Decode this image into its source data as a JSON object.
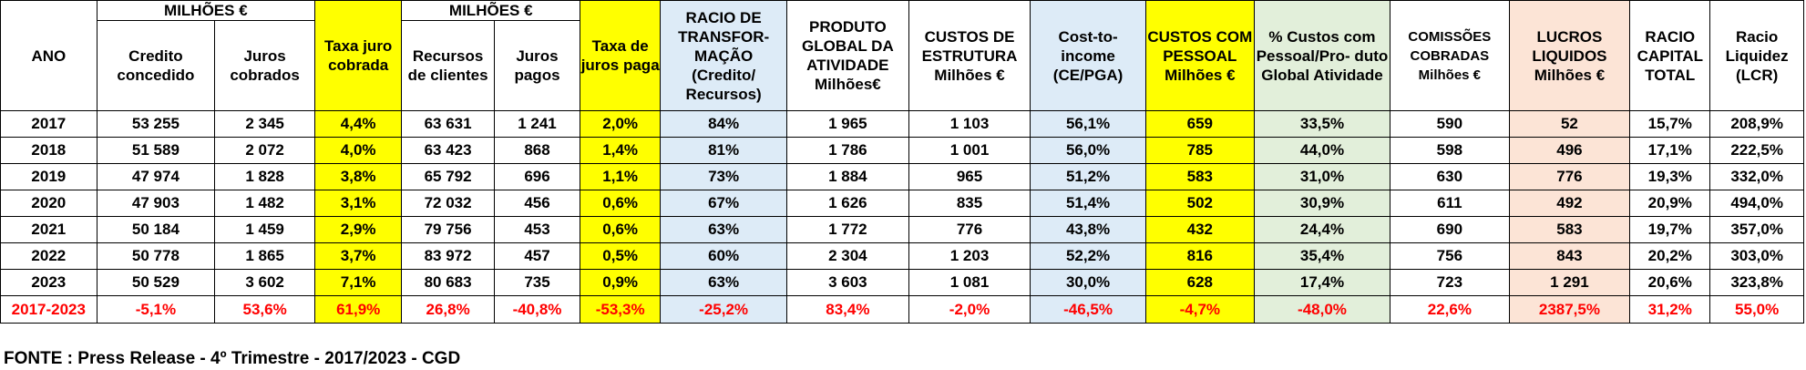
{
  "table": {
    "group_headers": {
      "milhoes_1": "MILHÕES €",
      "milhoes_2": "MILHÕES €"
    },
    "columns": [
      {
        "key": "ano",
        "label": "ANO"
      },
      {
        "key": "credito",
        "label": "Credito concedido"
      },
      {
        "key": "juros_cobrados",
        "label": "Juros cobrados"
      },
      {
        "key": "taxa_cobrada",
        "label": "Taxa juro cobrada",
        "highlight": "#ffff00"
      },
      {
        "key": "recursos",
        "label": "Recursos de clientes"
      },
      {
        "key": "juros_pagos",
        "label": "Juros pagos"
      },
      {
        "key": "taxa_paga",
        "label": "Taxa de juros paga",
        "highlight": "#ffff00"
      },
      {
        "key": "racio_transf",
        "label": "RACIO DE TRANSFOR- MAÇÃO (Credito/ Recursos)",
        "highlight": "#ddebf7"
      },
      {
        "key": "produto_global",
        "label": "PRODUTO GLOBAL DA ATIVIDADE Milhões€"
      },
      {
        "key": "custos_estrutura",
        "label": "CUSTOS DE ESTRUTURA Milhões €"
      },
      {
        "key": "cost_income",
        "label": "Cost-to- income (CE/PGA)",
        "highlight": "#ddebf7"
      },
      {
        "key": "custos_pessoal",
        "label": "CUSTOS COM PESSOAL Milhões €",
        "highlight": "#ffff00"
      },
      {
        "key": "pct_custos",
        "label": "% Custos com Pessoal/Pro- duto Global Atividade",
        "highlight": "#e2efda"
      },
      {
        "key": "comissoes",
        "label": "COMISSÕES COBRADAS Milhões €"
      },
      {
        "key": "lucros",
        "label": "LUCROS LIQUIDOS Milhões €",
        "highlight": "#fce4d6"
      },
      {
        "key": "racio_capital",
        "label": "RACIO CAPITAL TOTAL"
      },
      {
        "key": "lcr",
        "label": "Racio Liquidez (LCR)"
      }
    ],
    "rows": [
      [
        "2017",
        "53 255",
        "2 345",
        "4,4%",
        "63 631",
        "1 241",
        "2,0%",
        "84%",
        "1 965",
        "1 103",
        "56,1%",
        "659",
        "33,5%",
        "590",
        "52",
        "15,7%",
        "208,9%"
      ],
      [
        "2018",
        "51 589",
        "2 072",
        "4,0%",
        "63 423",
        "868",
        "1,4%",
        "81%",
        "1 786",
        "1 001",
        "56,0%",
        "785",
        "44,0%",
        "598",
        "496",
        "17,1%",
        "222,5%"
      ],
      [
        "2019",
        "47 974",
        "1 828",
        "3,8%",
        "65 792",
        "696",
        "1,1%",
        "73%",
        "1 884",
        "965",
        "51,2%",
        "583",
        "31,0%",
        "630",
        "776",
        "19,3%",
        "332,0%"
      ],
      [
        "2020",
        "47 903",
        "1 482",
        "3,1%",
        "72 032",
        "456",
        "0,6%",
        "67%",
        "1 626",
        "835",
        "51,4%",
        "502",
        "30,9%",
        "611",
        "492",
        "20,9%",
        "494,0%"
      ],
      [
        "2021",
        "50 184",
        "1 459",
        "2,9%",
        "79 756",
        "453",
        "0,6%",
        "63%",
        "1 772",
        "776",
        "43,8%",
        "432",
        "24,4%",
        "690",
        "583",
        "19,7%",
        "357,0%"
      ],
      [
        "2022",
        "50 778",
        "1 865",
        "3,7%",
        "83 972",
        "457",
        "0,5%",
        "60%",
        "2 304",
        "1 203",
        "52,2%",
        "816",
        "35,4%",
        "756",
        "843",
        "20,2%",
        "303,0%"
      ],
      [
        "2023",
        "50 529",
        "3 602",
        "7,1%",
        "80 683",
        "735",
        "0,9%",
        "63%",
        "3 603",
        "1 081",
        "30,0%",
        "628",
        "17,4%",
        "723",
        "1 291",
        "20,6%",
        "323,8%"
      ]
    ],
    "change_row": [
      "2017-2023",
      "-5,1%",
      "53,6%",
      "61,9%",
      "26,8%",
      "-40,8%",
      "-53,3%",
      "-25,2%",
      "83,4%",
      "-2,0%",
      "-46,5%",
      "-4,7%",
      "-48,0%",
      "22,6%",
      "2387,5%",
      "31,2%",
      "55,0%"
    ]
  },
  "source": "FONTE : Press Release - 4º Trimestre - 2017/2023 - CGD"
}
